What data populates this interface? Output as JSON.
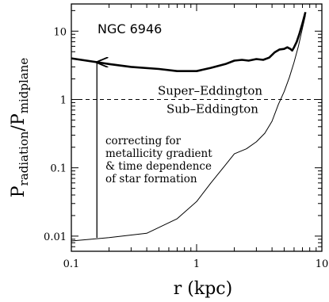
{
  "chart_data": {
    "type": "line",
    "title": "NGC 6946",
    "xlabel_main": "r",
    "xlabel_unit": "(kpc)",
    "ylabel_main": "P",
    "ylabel_sub_num": "radiation",
    "ylabel_sep": "/P",
    "ylabel_sub_den": "midplane",
    "xscale": "log",
    "yscale": "log",
    "xlim": [
      0.1,
      10
    ],
    "ylim": [
      0.006,
      25
    ],
    "xticks": [
      0.1,
      1,
      10
    ],
    "xtick_labels": [
      "0.1",
      "1",
      "10"
    ],
    "yticks": [
      0.01,
      0.1,
      1,
      10
    ],
    "ytick_labels": [
      "0.01",
      "0.1",
      "1",
      "10"
    ],
    "series": [
      {
        "style": "thick",
        "x": [
          0.1,
          0.2,
          0.3,
          0.5,
          0.7,
          1.0,
          1.3,
          1.7,
          2.0,
          2.3,
          2.6,
          3.0,
          3.4,
          3.8,
          4.2,
          4.6,
          5.0,
          5.3,
          5.6,
          5.8,
          6.0,
          6.3,
          6.6,
          7.0,
          7.4
        ],
        "y": [
          4.0,
          3.3,
          3.0,
          2.8,
          2.6,
          2.6,
          2.9,
          3.3,
          3.7,
          3.8,
          3.7,
          3.9,
          3.8,
          4.1,
          4.9,
          5.4,
          5.5,
          5.8,
          5.5,
          5.2,
          5.8,
          7.0,
          9.0,
          13.0,
          19.0
        ]
      },
      {
        "style": "thin",
        "x": [
          0.1,
          0.2,
          0.4,
          0.7,
          1.0,
          1.3,
          1.7,
          2.0,
          2.5,
          3.0,
          3.5,
          4.0,
          4.5,
          5.0,
          5.5,
          6.0,
          6.5,
          7.0,
          7.4
        ],
        "y": [
          0.0085,
          0.0095,
          0.011,
          0.018,
          0.032,
          0.06,
          0.11,
          0.16,
          0.19,
          0.24,
          0.32,
          0.48,
          0.85,
          1.3,
          2.1,
          3.5,
          6.0,
          11.0,
          17.0
        ]
      }
    ],
    "reference_line": {
      "y": 1,
      "style": "dashed"
    },
    "annotations": {
      "above_line": "Super–Eddington",
      "below_line": "Sub–Eddington",
      "arrow": {
        "x": 0.16,
        "y_from": 0.0085,
        "y_to": 3.5
      },
      "arrow_text": [
        "correcting for",
        "metallicity gradient",
        "& time dependence",
        "of star formation"
      ]
    },
    "grid": false,
    "legend": "none"
  }
}
